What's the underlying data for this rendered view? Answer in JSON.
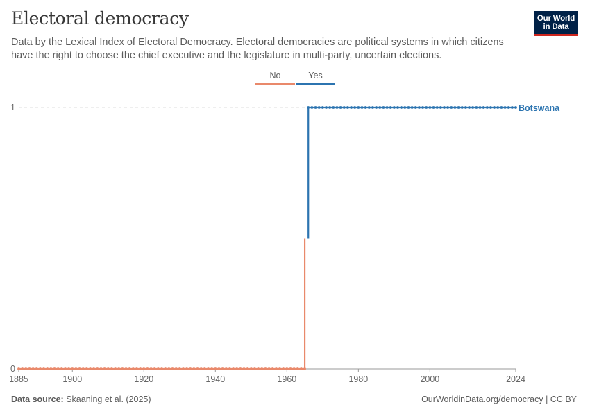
{
  "header": {
    "title": "Electoral democracy",
    "subtitle": "Data by the Lexical Index of Electoral Democracy. Electoral democracies are political systems in which citizens have the right to choose the chief executive and the legislature in multi-party, uncertain elections."
  },
  "logo": {
    "line1": "Our World",
    "line2": "in Data",
    "bg_color": "#002147",
    "accent_color": "#ce261e"
  },
  "legend": {
    "items": [
      {
        "label": "No",
        "color": "#e9896b"
      },
      {
        "label": "Yes",
        "color": "#2c74b0"
      }
    ]
  },
  "footer": {
    "source_label": "Data source:",
    "source_text": "Skaaning et al. (2025)",
    "url_text": "OurWorldinData.org/democracy | CC BY"
  },
  "chart_data": {
    "type": "line",
    "title": "Electoral democracy",
    "subtitle": "Data by the Lexical Index of Electoral Democracy. Electoral democracies are political systems in which citizens have the right to choose the chief executive and the legislature in multi-party, uncertain elections.",
    "xlabel": "",
    "ylabel": "",
    "xlim": [
      1885,
      2024
    ],
    "ylim": [
      0,
      1
    ],
    "x_ticks": [
      1885,
      1900,
      1920,
      1940,
      1960,
      1980,
      2000,
      2024
    ],
    "y_ticks": [
      0,
      1
    ],
    "grid": "horizontal dashed",
    "legend_position": "top-center",
    "color_scale": {
      "No": "#e9896b",
      "Yes": "#2c74b0"
    },
    "series": [
      {
        "name": "Botswana",
        "step_year": 1966,
        "segments": [
          {
            "from_year": 1885,
            "to_year": 1965,
            "value": 0,
            "category": "No"
          },
          {
            "from_year": 1966,
            "to_year": 2024,
            "value": 1,
            "category": "Yes"
          }
        ]
      }
    ]
  }
}
